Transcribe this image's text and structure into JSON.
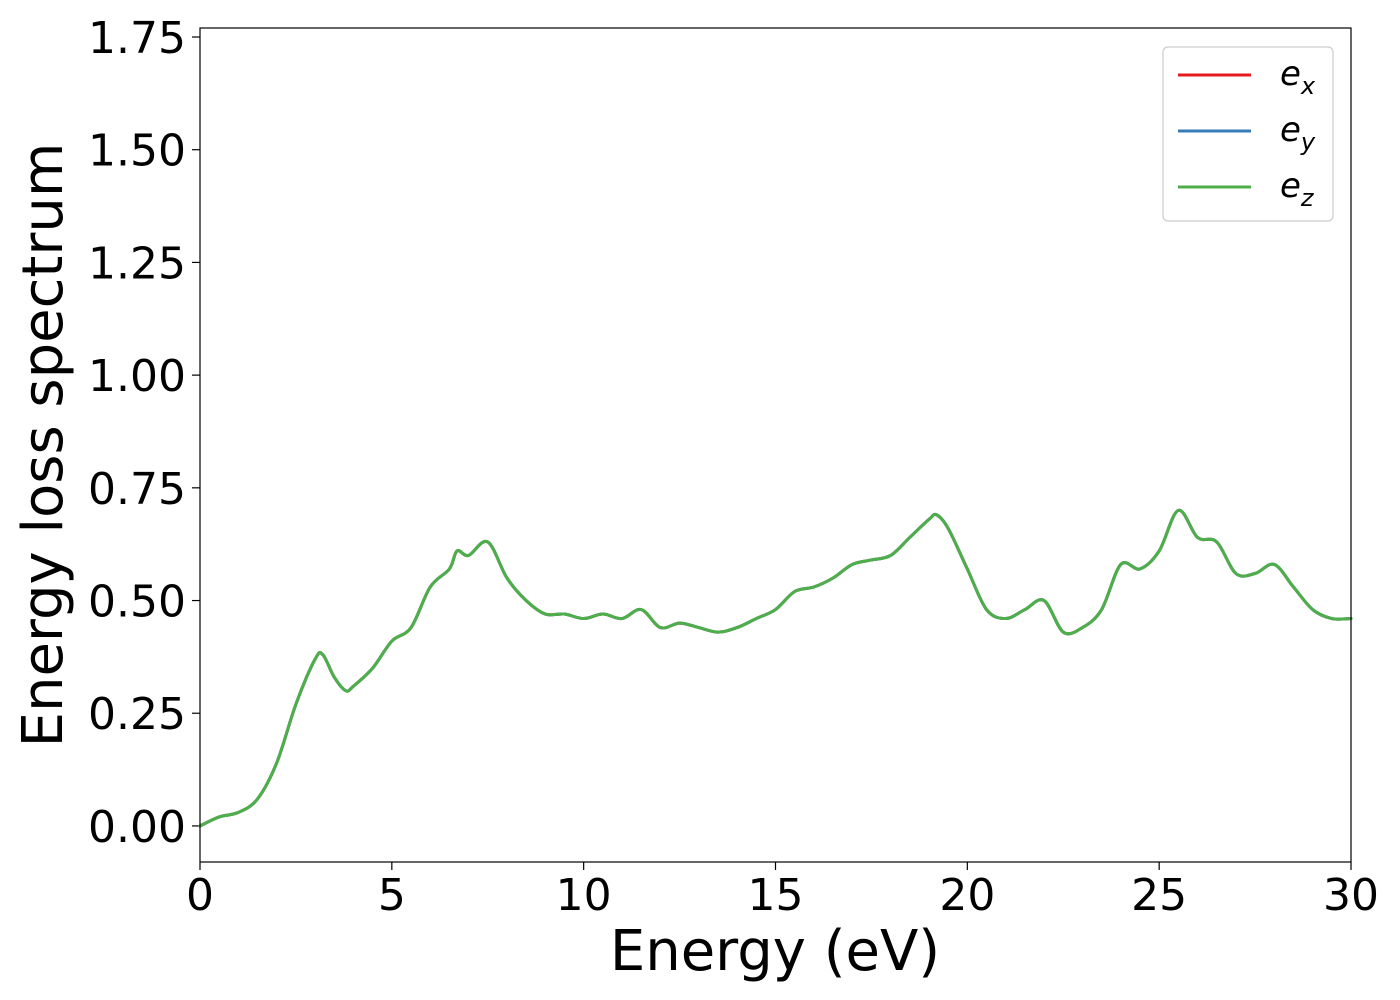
{
  "chart_data": {
    "type": "line",
    "title": "",
    "xlabel": "Energy (eV)",
    "ylabel": "Energy loss spectrum",
    "xlim": [
      0,
      30
    ],
    "ylim": [
      -0.08,
      1.77
    ],
    "xticks": [
      0,
      5,
      10,
      15,
      20,
      25,
      30
    ],
    "xtick_labels": [
      "0",
      "5",
      "10",
      "15",
      "20",
      "25",
      "30"
    ],
    "yticks": [
      0.0,
      0.25,
      0.5,
      0.75,
      1.0,
      1.25,
      1.5,
      1.75
    ],
    "ytick_labels": [
      "0.00",
      "0.25",
      "0.50",
      "0.75",
      "1.00",
      "1.25",
      "1.50",
      "1.75"
    ],
    "grid": false,
    "legend_position": "top-right",
    "x": [
      0,
      0.5,
      1.0,
      1.5,
      2.0,
      2.5,
      3.0,
      3.2,
      3.5,
      3.8,
      4.0,
      4.5,
      5.0,
      5.5,
      6.0,
      6.5,
      6.7,
      7.0,
      7.5,
      8.0,
      8.5,
      9.0,
      9.5,
      10.0,
      10.5,
      11.0,
      11.5,
      12.0,
      12.5,
      13.0,
      13.5,
      14.0,
      14.5,
      15.0,
      15.5,
      16.0,
      16.5,
      17.0,
      17.5,
      18.0,
      18.5,
      19.0,
      19.2,
      19.5,
      20.0,
      20.5,
      21.0,
      21.5,
      22.0,
      22.5,
      23.0,
      23.5,
      24.0,
      24.5,
      25.0,
      25.5,
      26.0,
      26.5,
      27.0,
      27.5,
      28.0,
      28.5,
      29.0,
      29.5,
      30.0
    ],
    "series": [
      {
        "name": "e_x",
        "label_base": "e",
        "label_sub": "x",
        "color": "#e41a1c",
        "values": [
          0.0,
          0.02,
          0.03,
          0.06,
          0.14,
          0.27,
          0.37,
          0.38,
          0.33,
          0.3,
          0.31,
          0.35,
          0.41,
          0.44,
          0.53,
          0.57,
          0.61,
          0.6,
          0.63,
          0.55,
          0.5,
          0.47,
          0.47,
          0.46,
          0.47,
          0.46,
          0.48,
          0.44,
          0.45,
          0.44,
          0.43,
          0.44,
          0.46,
          0.48,
          0.52,
          0.53,
          0.55,
          0.58,
          0.59,
          0.6,
          0.64,
          0.68,
          0.69,
          0.66,
          0.57,
          0.48,
          0.46,
          0.48,
          0.5,
          0.43,
          0.44,
          0.48,
          0.58,
          0.57,
          0.61,
          0.7,
          0.64,
          0.63,
          0.56,
          0.56,
          0.58,
          0.53,
          0.48,
          0.46,
          0.46
        ]
      },
      {
        "name": "e_y",
        "label_base": "e",
        "label_sub": "y",
        "color": "#377eb8",
        "values": [
          0.0,
          0.02,
          0.03,
          0.06,
          0.14,
          0.27,
          0.37,
          0.38,
          0.33,
          0.3,
          0.31,
          0.35,
          0.41,
          0.44,
          0.53,
          0.57,
          0.61,
          0.6,
          0.63,
          0.55,
          0.5,
          0.47,
          0.47,
          0.46,
          0.47,
          0.46,
          0.48,
          0.44,
          0.45,
          0.44,
          0.43,
          0.44,
          0.46,
          0.48,
          0.52,
          0.53,
          0.55,
          0.58,
          0.59,
          0.6,
          0.64,
          0.68,
          0.69,
          0.66,
          0.57,
          0.48,
          0.46,
          0.48,
          0.5,
          0.43,
          0.44,
          0.48,
          0.58,
          0.57,
          0.61,
          0.7,
          0.64,
          0.63,
          0.56,
          0.56,
          0.58,
          0.53,
          0.48,
          0.46,
          0.46
        ]
      },
      {
        "name": "e_z",
        "label_base": "e",
        "label_sub": "z",
        "color": "#4daf4a",
        "values": [
          0.0,
          0.02,
          0.03,
          0.06,
          0.14,
          0.27,
          0.37,
          0.38,
          0.33,
          0.3,
          0.31,
          0.35,
          0.41,
          0.44,
          0.53,
          0.57,
          0.61,
          0.6,
          0.63,
          0.55,
          0.5,
          0.47,
          0.47,
          0.46,
          0.47,
          0.46,
          0.48,
          0.44,
          0.45,
          0.44,
          0.43,
          0.44,
          0.46,
          0.48,
          0.52,
          0.53,
          0.55,
          0.58,
          0.59,
          0.6,
          0.64,
          0.68,
          0.69,
          0.66,
          0.57,
          0.48,
          0.46,
          0.48,
          0.5,
          0.43,
          0.44,
          0.48,
          0.58,
          0.57,
          0.61,
          0.7,
          0.64,
          0.63,
          0.56,
          0.56,
          0.58,
          0.53,
          0.48,
          0.46,
          0.46
        ]
      }
    ]
  }
}
